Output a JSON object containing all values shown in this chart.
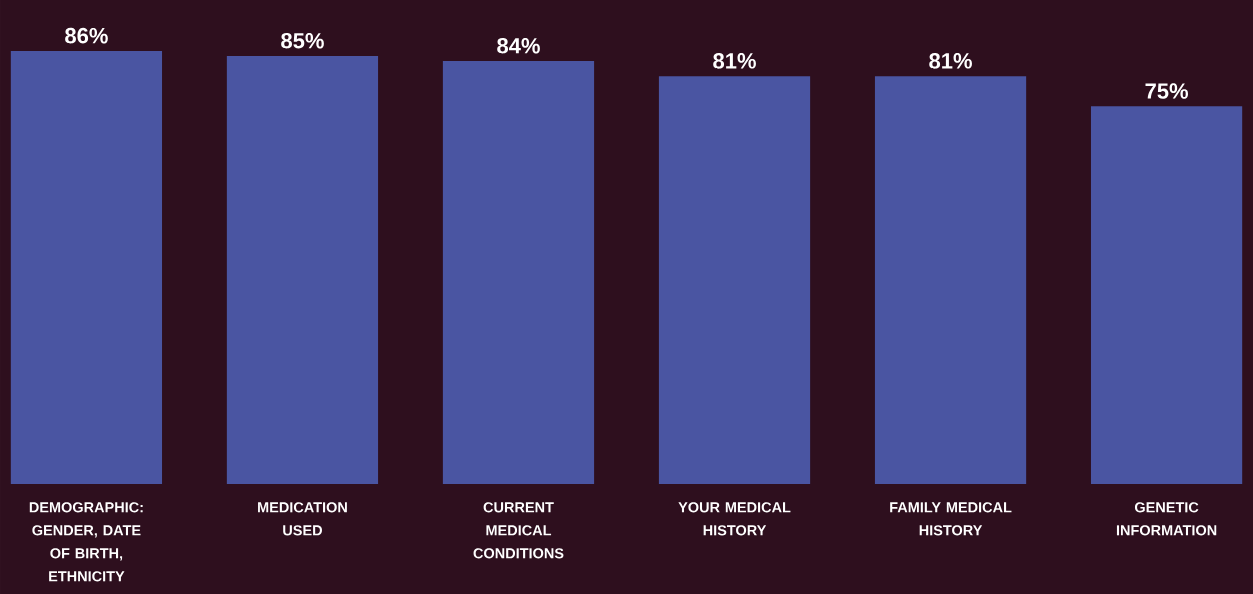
{
  "chart_data": {
    "type": "bar",
    "categories": [
      "DEMOGRAPHIC: GENDER, DATE OF BIRTH, ETHNICITY",
      "MEDICATION USED",
      "CURRENT MEDICAL CONDITIONS",
      "YOUR MEDICAL HISTORY",
      "FAMILY MEDICAL HISTORY",
      "GENETIC INFORMATION"
    ],
    "values": [
      86,
      85,
      84,
      81,
      81,
      75
    ],
    "value_labels": [
      "86%",
      "85%",
      "84%",
      "81%",
      "81%",
      "75%"
    ],
    "color": "#4a55a2",
    "data_labels": true
  }
}
